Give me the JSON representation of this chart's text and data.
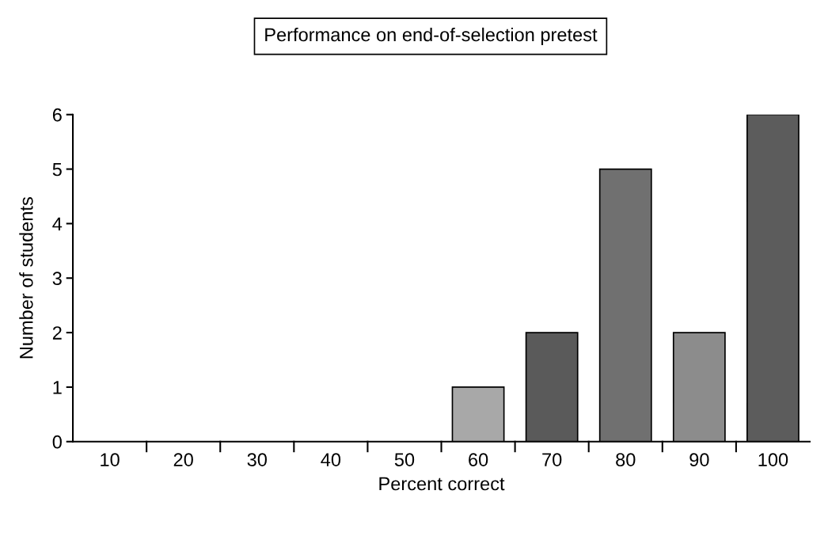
{
  "chart_data": {
    "type": "bar",
    "title": "Performance on end-of-selection pretest",
    "xlabel": "Percent correct",
    "ylabel": "Number of students",
    "categories": [
      "10",
      "20",
      "30",
      "40",
      "50",
      "60",
      "70",
      "80",
      "90",
      "100"
    ],
    "values": [
      0,
      0,
      0,
      0,
      0,
      1,
      2,
      5,
      2,
      6
    ],
    "colors": [
      "#000000",
      "#000000",
      "#000000",
      "#000000",
      "#000000",
      "#a8a8a8",
      "#5a5a5a",
      "#707070",
      "#8c8c8c",
      "#5c5c5c"
    ],
    "ylim": [
      0,
      6
    ],
    "yticks": [
      0,
      1,
      2,
      3,
      4,
      5,
      6
    ],
    "grid": false,
    "legend": false
  }
}
